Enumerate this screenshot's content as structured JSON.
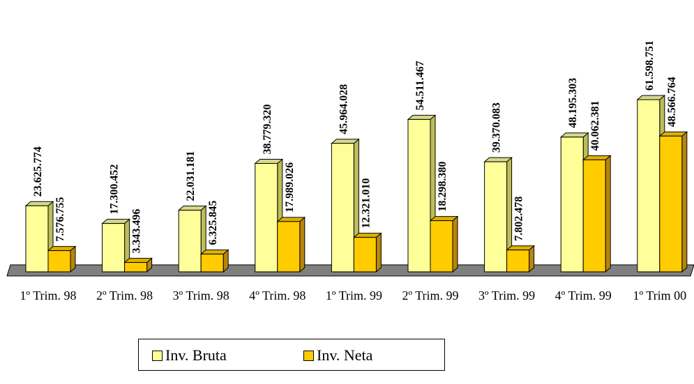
{
  "chart_data": {
    "type": "bar",
    "categories": [
      "1º Trim. 98",
      "2º Trim. 98",
      "3º Trim. 98",
      "4º Trim. 98",
      "1º Trim. 99",
      "2º Trim. 99",
      "3º Trim. 99",
      "4º Trim. 99",
      "1º Trim 00"
    ],
    "series": [
      {
        "name": "Inv. Bruta",
        "values": [
          23625774,
          17300452,
          22031181,
          38779320,
          45964028,
          54511467,
          39370083,
          48195303,
          61598751
        ],
        "labels": [
          "23.625.774",
          "17.300.452",
          "22.031.181",
          "38.779.320",
          "45.964.028",
          "54.511.467",
          "39.370.083",
          "48.195.303",
          "61.598.751"
        ],
        "color": "#FFFF99"
      },
      {
        "name": "Inv. Neta",
        "values": [
          7576755,
          3343496,
          6325845,
          17989026,
          12321010,
          18298380,
          7802478,
          40062381,
          48566764
        ],
        "labels": [
          "7.576.755",
          "3.343.496",
          "6.325.845",
          "17.989.026",
          "12.321.010",
          "18.298.380",
          "7.802.478",
          "40.062.381",
          "48.566.764"
        ],
        "color": "#FFCC00"
      }
    ],
    "legend_position": "bottom",
    "grid": false,
    "style": "3d-column"
  }
}
